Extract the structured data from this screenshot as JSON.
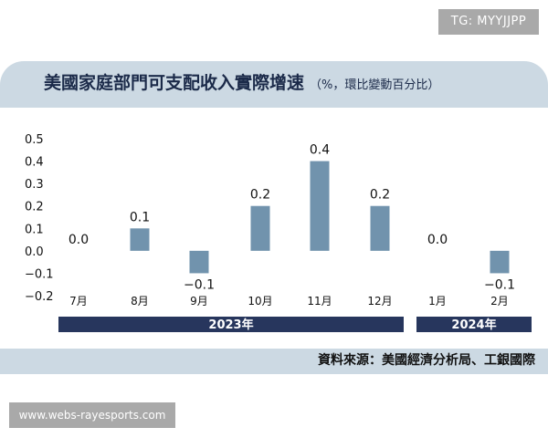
{
  "watermark": {
    "tg_label": "TG: MYYJJPP",
    "website": "www.webs-rayesports.com"
  },
  "chart_data": {
    "type": "bar",
    "title": "美國家庭部門可支配收入實際增速",
    "unit_note": "（%，環比變動百分比）",
    "categories": [
      "7月",
      "8月",
      "9月",
      "10月",
      "11月",
      "12月",
      "1月",
      "2月"
    ],
    "values": [
      0.0,
      0.1,
      -0.1,
      0.2,
      0.4,
      0.2,
      0.0,
      -0.1
    ],
    "value_labels": [
      "0.0",
      "0.1",
      "−0.1",
      "0.2",
      "0.4",
      "0.2",
      "0.0",
      "−0.1"
    ],
    "y_ticks": [
      "0.5",
      "0.4",
      "0.3",
      "0.2",
      "0.1",
      "0.0",
      "−0.1",
      "−0.2"
    ],
    "y_tick_values": [
      0.5,
      0.4,
      0.3,
      0.2,
      0.1,
      0.0,
      -0.1,
      -0.2
    ],
    "ylim": [
      -0.2,
      0.5
    ],
    "grid": false,
    "year_groups": [
      {
        "label": "2023年",
        "categories": [
          "7月",
          "8月",
          "9月",
          "10月",
          "11月",
          "12月"
        ]
      },
      {
        "label": "2024年",
        "categories": [
          "1月",
          "2月"
        ]
      }
    ],
    "source": "資料來源：美國經濟分析局、工銀國際",
    "colors": {
      "bar": "#7193ad",
      "year_band": "#27365d",
      "panel": "#ccd9e3"
    }
  }
}
